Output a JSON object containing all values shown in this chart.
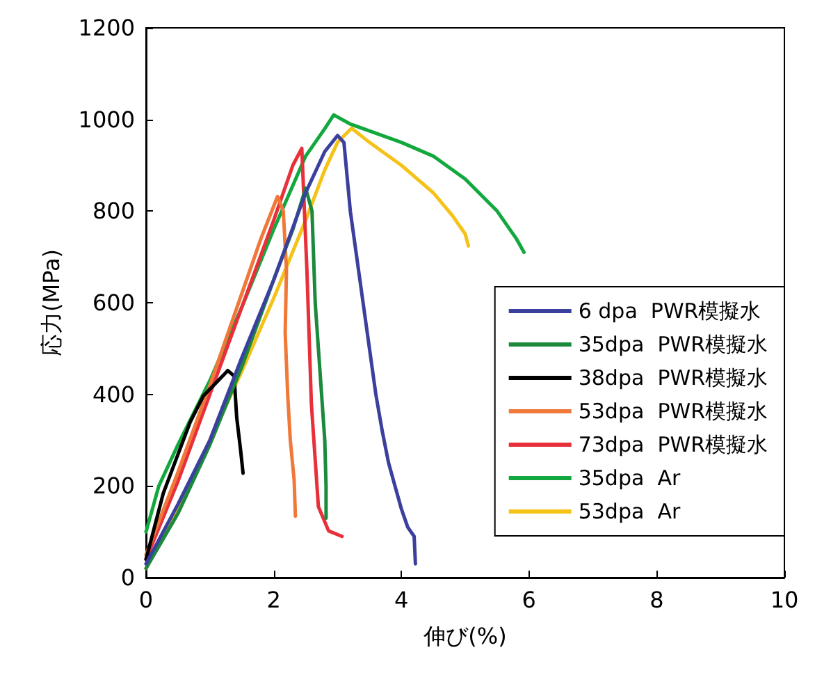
{
  "chart_data": {
    "type": "line",
    "xlabel": "伸び(%)",
    "ylabel": "応力(MPa)",
    "xlim": [
      0,
      10
    ],
    "xticks": [
      0,
      2,
      4,
      6,
      8,
      10
    ],
    "ylim": [
      0,
      1200
    ],
    "yticks": [
      0,
      200,
      400,
      600,
      800,
      1000,
      1200
    ],
    "grid": false,
    "legend": "right",
    "marker": "none",
    "line_style": "solid",
    "series": [
      {
        "name": "6 dpa  PWR模擬水",
        "color": "#3b3f9e",
        "x": [
          0,
          0.5,
          1,
          1.5,
          2,
          2.5,
          2.8,
          3.0,
          3.1,
          3.2,
          3.3,
          3.4,
          3.5,
          3.6,
          3.7,
          3.8,
          3.9,
          4.0,
          4.1,
          4.2,
          4.22
        ],
        "values": [
          30,
          160,
          300,
          480,
          650,
          840,
          930,
          965,
          950,
          800,
          700,
          600,
          500,
          400,
          320,
          250,
          200,
          150,
          110,
          90,
          30
        ]
      },
      {
        "name": "35dpa  PWR模擬水",
        "color": "#1b8a3c",
        "x": [
          0,
          0.5,
          1,
          1.5,
          2,
          2.3,
          2.5,
          2.6,
          2.65,
          2.7,
          2.75,
          2.8,
          2.82,
          2.82
        ],
        "values": [
          20,
          140,
          290,
          460,
          650,
          760,
          850,
          800,
          600,
          500,
          400,
          300,
          200,
          130
        ]
      },
      {
        "name": "38dpa  PWR模擬水",
        "color": "#000000",
        "x": [
          0,
          0.27,
          0.69,
          0.9,
          1.2,
          1.28,
          1.38,
          1.42,
          1.48,
          1.52
        ],
        "values": [
          40,
          184,
          339,
          397,
          440,
          452,
          440,
          350,
          280,
          228
        ]
      },
      {
        "name": "53dpa  PWR模擬水",
        "color": "#f07838",
        "x": [
          0,
          0.5,
          1,
          1.5,
          1.8,
          2.06,
          2.15,
          2.2,
          2.18,
          2.22,
          2.26,
          2.32,
          2.34
        ],
        "values": [
          50,
          230,
          420,
          620,
          740,
          832,
          800,
          672,
          534,
          397,
          300,
          213,
          134
        ]
      },
      {
        "name": "73dpa  PWR模擬水",
        "color": "#e8303a",
        "x": [
          0,
          0.5,
          1,
          1.5,
          2,
          2.3,
          2.44,
          2.52,
          2.59,
          2.7,
          2.86,
          3.07
        ],
        "values": [
          40,
          210,
          400,
          590,
          780,
          900,
          937,
          672,
          380,
          155,
          102,
          90
        ]
      },
      {
        "name": "35dpa  Ar",
        "color": "#13a83e",
        "x": [
          0,
          0.2,
          0.5,
          1,
          1.5,
          2,
          2.5,
          2.8,
          2.94,
          3.2,
          3.5,
          4,
          4.5,
          5,
          5.5,
          5.8,
          5.92
        ],
        "values": [
          100,
          200,
          290,
          430,
          590,
          760,
          920,
          980,
          1010,
          990,
          975,
          950,
          920,
          870,
          800,
          740,
          710
        ]
      },
      {
        "name": "53dpa  Ar",
        "color": "#f5c21a",
        "x": [
          0,
          0.5,
          1,
          1.5,
          2,
          2.5,
          2.8,
          3.0,
          3.22,
          3.5,
          4,
          4.5,
          4.8,
          5.0,
          5.05
        ],
        "values": [
          20,
          150,
          300,
          450,
          610,
          780,
          890,
          950,
          981,
          950,
          900,
          840,
          790,
          750,
          724
        ]
      }
    ]
  }
}
